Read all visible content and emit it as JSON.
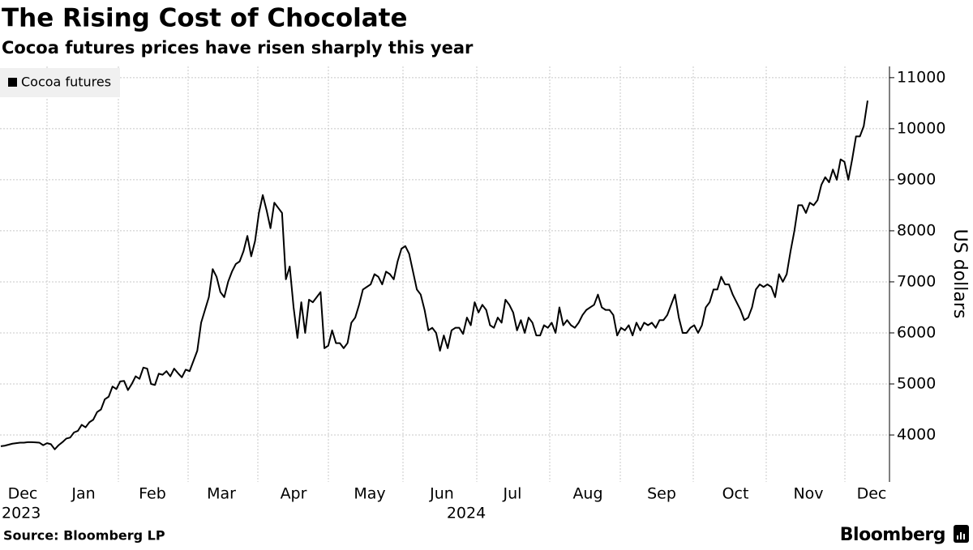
{
  "chart_data": {
    "type": "line",
    "title": "The Rising Cost of Chocolate",
    "subtitle": "Cocoa futures prices have risen sharply this year",
    "y_label": "US dollars",
    "source": "Source: Bloomberg LP",
    "brand": "Bloomberg",
    "x_tick_labels": [
      "Dec",
      "Jan",
      "Feb",
      "Mar",
      "Apr",
      "May",
      "Jun",
      "Jul",
      "Aug",
      "Sep",
      "Oct",
      "Nov",
      "Dec"
    ],
    "x_year_labels": [
      "2023",
      "2024"
    ],
    "ylim": [
      3080,
      11220
    ],
    "yticks": [
      4000,
      5000,
      6000,
      7000,
      8000,
      9000,
      10000,
      11000
    ],
    "grid": true,
    "legend": "upper left",
    "series": [
      {
        "name": "Cocoa futures",
        "color": "#000000",
        "values": [
          3780,
          3790,
          3810,
          3830,
          3840,
          3850,
          3850,
          3860,
          3860,
          3855,
          3850,
          3800,
          3840,
          3820,
          3720,
          3800,
          3860,
          3930,
          3950,
          4050,
          4080,
          4200,
          4150,
          4250,
          4300,
          4450,
          4500,
          4700,
          4750,
          4950,
          4900,
          5050,
          5060,
          4880,
          5000,
          5150,
          5100,
          5320,
          5300,
          5000,
          4980,
          5200,
          5180,
          5250,
          5150,
          5300,
          5210,
          5130,
          5280,
          5250,
          5450,
          5650,
          6200,
          6450,
          6700,
          7250,
          7100,
          6800,
          6700,
          7000,
          7200,
          7350,
          7400,
          7600,
          7900,
          7500,
          7800,
          8350,
          8700,
          8400,
          8050,
          8550,
          8450,
          8350,
          7050,
          7300,
          6500,
          5900,
          6600,
          6000,
          6650,
          6600,
          6700,
          6800,
          5700,
          5750,
          6050,
          5800,
          5800,
          5700,
          5800,
          6200,
          6300,
          6550,
          6850,
          6900,
          6950,
          7150,
          7100,
          6950,
          7200,
          7150,
          7050,
          7400,
          7650,
          7700,
          7550,
          7200,
          6850,
          6750,
          6450,
          6050,
          6100,
          6000,
          5650,
          5950,
          5700,
          6050,
          6100,
          6100,
          5980,
          6300,
          6150,
          6600,
          6400,
          6550,
          6450,
          6150,
          6100,
          6300,
          6200,
          6650,
          6550,
          6400,
          6050,
          6250,
          6000,
          6300,
          6200,
          5950,
          5950,
          6150,
          6100,
          6200,
          6000,
          6500,
          6150,
          6250,
          6150,
          6100,
          6200,
          6350,
          6450,
          6500,
          6550,
          6750,
          6500,
          6450,
          6450,
          6350,
          5950,
          6100,
          6050,
          6150,
          5950,
          6200,
          6050,
          6200,
          6150,
          6200,
          6100,
          6250,
          6250,
          6350,
          6550,
          6750,
          6300,
          6000,
          6000,
          6100,
          6150,
          6000,
          6150,
          6500,
          6600,
          6850,
          6850,
          7100,
          6950,
          6950,
          6750,
          6600,
          6450,
          6250,
          6300,
          6500,
          6850,
          6950,
          6900,
          6950,
          6900,
          6700,
          7150,
          7000,
          7150,
          7600,
          8000,
          8500,
          8500,
          8350,
          8550,
          8500,
          8600,
          8900,
          9050,
          8950,
          9200,
          9000,
          9400,
          9350,
          9000,
          9400,
          9850,
          9850,
          10050,
          10550
        ]
      }
    ]
  }
}
